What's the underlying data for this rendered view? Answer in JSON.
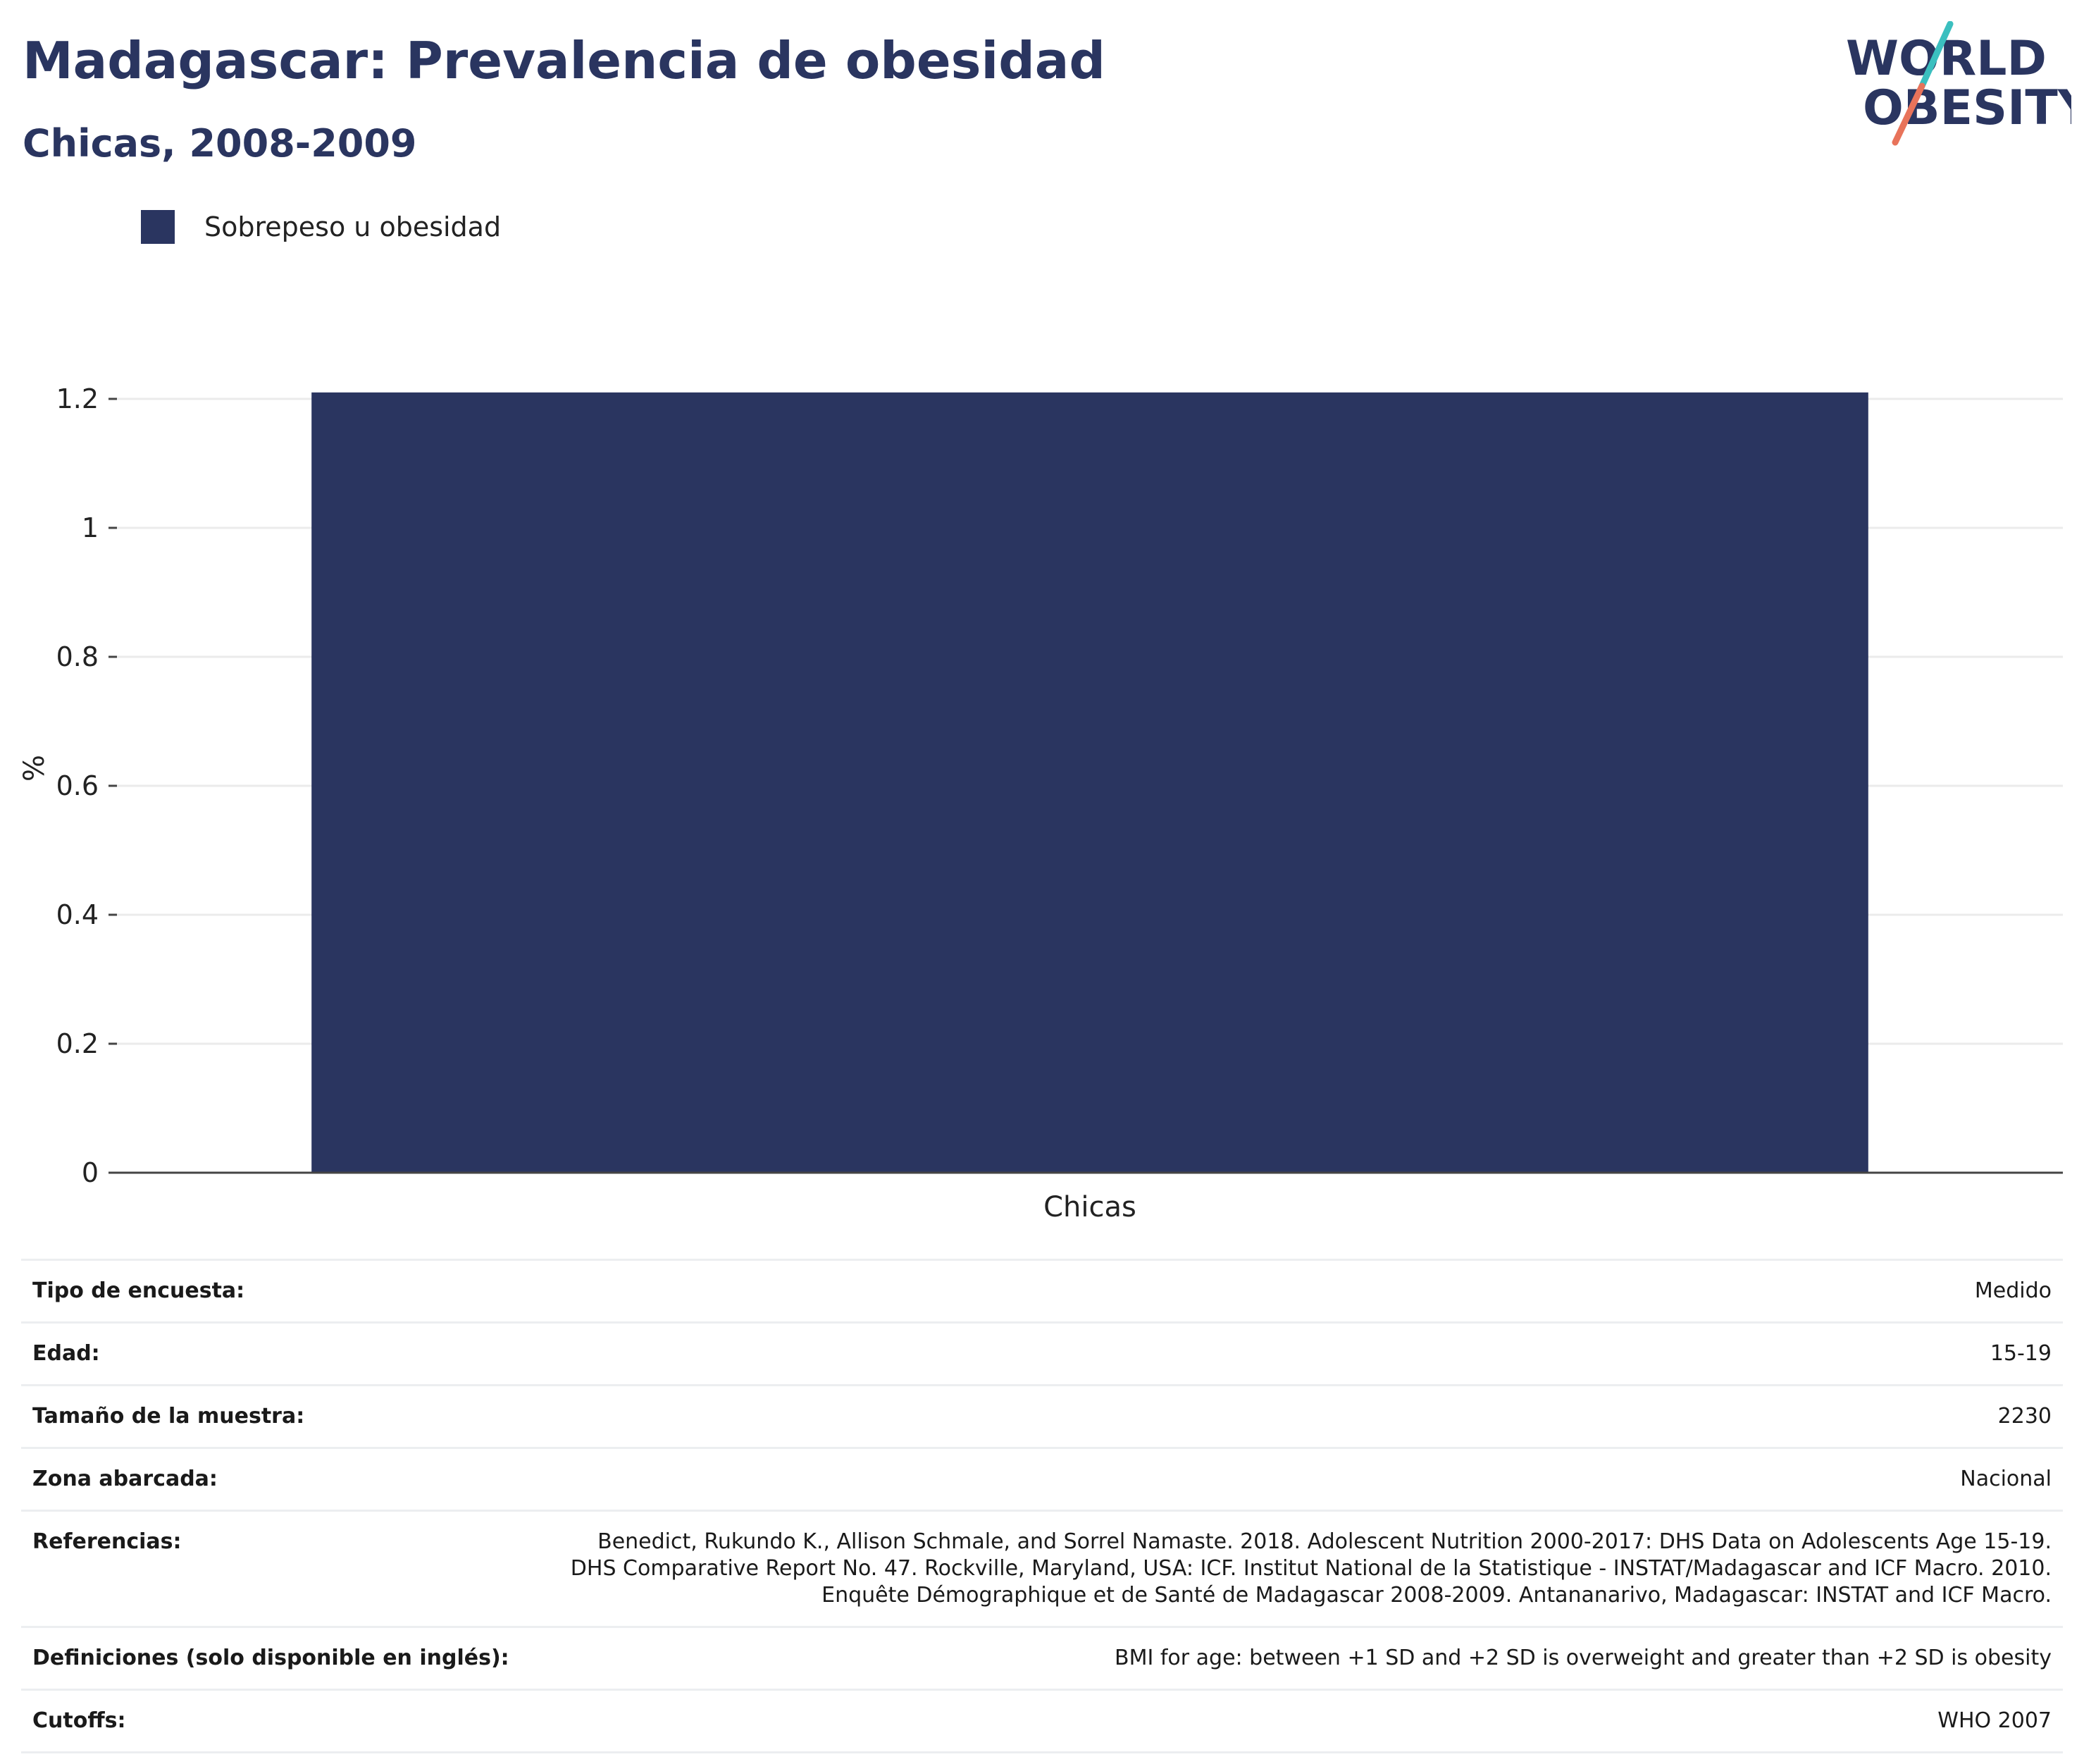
{
  "header": {
    "title": "Madagascar: Prevalencia de obesidad",
    "subtitle": "Chicas, 2008-2009"
  },
  "logo": {
    "line1": "WORLD",
    "line2": "OBESITY",
    "slash_top_color": "#3bbfbf",
    "slash_bottom_color": "#e8735a",
    "text_color": "#2a3560"
  },
  "legend": {
    "label": "Sobrepeso u obesidad",
    "color": "#2a3560"
  },
  "chart_data": {
    "type": "bar",
    "categories": [
      "Chicas"
    ],
    "series": [
      {
        "name": "Sobrepeso u obesidad",
        "values": [
          1.21
        ],
        "color": "#2a3560"
      }
    ],
    "ylabel": "%",
    "xlabel": "",
    "ylim": [
      0,
      1.2
    ],
    "yticks": [
      0,
      0.2,
      0.4,
      0.6,
      0.8,
      1,
      1.2
    ],
    "ytick_labels": [
      "0",
      "0.2",
      "0.4",
      "0.6",
      "0.8",
      "1",
      "1.2"
    ],
    "grid": true,
    "legend_position": "top-left"
  },
  "info": [
    {
      "label": "Tipo de encuesta:",
      "value": "Medido"
    },
    {
      "label": "Edad:",
      "value": "15-19"
    },
    {
      "label": "Tamaño de la muestra:",
      "value": "2230"
    },
    {
      "label": "Zona abarcada:",
      "value": "Nacional"
    },
    {
      "label": "Referencias:",
      "value": "Benedict, Rukundo K., Allison Schmale, and Sorrel Namaste. 2018. Adolescent Nutrition 2000-2017: DHS Data on Adolescents Age 15-19. DHS Comparative Report No. 47. Rockville, Maryland, USA: ICF. Institut National de la Statistique - INSTAT/Madagascar and ICF Macro. 2010. Enquête Démographique et de Santé de Madagascar 2008-2009. Antananarivo, Madagascar: INSTAT and ICF Macro."
    },
    {
      "label": "Definiciones (solo disponible en inglés):",
      "value": "BMI for age: between +1 SD and +2 SD is overweight and greater than +2 SD is obesity"
    },
    {
      "label": "Cutoffs:",
      "value": "WHO 2007"
    }
  ]
}
